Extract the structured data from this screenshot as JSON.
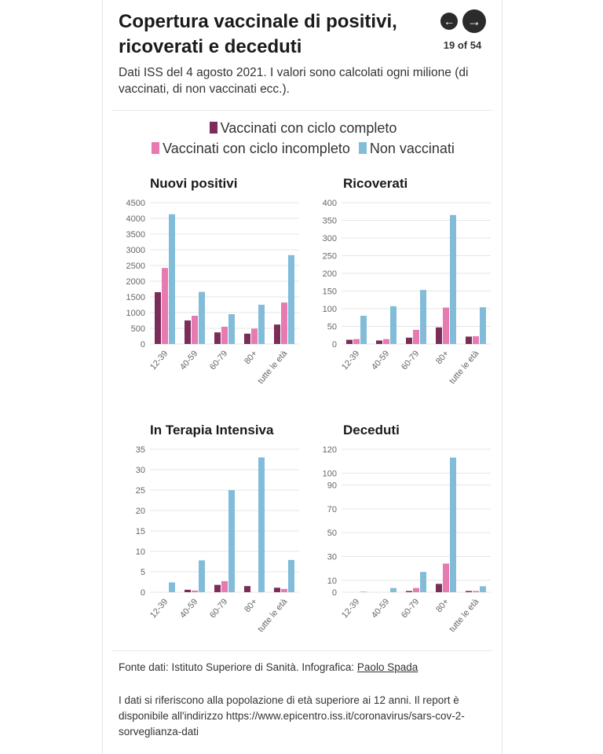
{
  "header": {
    "title": "Copertura vaccinale di positivi, ricoverati e deceduti",
    "nav_prev_icon": "arrow-left-icon",
    "nav_next_icon": "arrow-right-icon",
    "counter": "19 of 54"
  },
  "subtitle": "Dati ISS del 4 agosto 2021. I valori sono calcolati ogni milione (di vaccinati, di non vaccinati ecc.).",
  "colors": {
    "completo": "#7b2d5a",
    "incompleto": "#e67ab1",
    "non_vaccinati": "#82bcd8",
    "grid": "#e6e6e6",
    "axis_text": "#666666"
  },
  "legend": {
    "completo": "Vaccinati con ciclo completo",
    "incompleto": "Vaccinati con ciclo incompleto",
    "non_vaccinati": "Non vaccinati"
  },
  "chart_data": [
    {
      "type": "bar",
      "title": "Nuovi positivi",
      "categories": [
        "12-39",
        "40-59",
        "60-79",
        "80+",
        "tutte le età"
      ],
      "series": [
        {
          "name": "Vaccinati con ciclo completo",
          "values": [
            1650,
            750,
            370,
            330,
            620
          ]
        },
        {
          "name": "Vaccinati con ciclo incompleto",
          "values": [
            2420,
            900,
            550,
            490,
            1320
          ]
        },
        {
          "name": "Non vaccinati",
          "values": [
            4130,
            1660,
            950,
            1250,
            2830
          ]
        }
      ],
      "yticks": [
        0,
        500,
        1000,
        1500,
        2000,
        2500,
        3000,
        3500,
        4000,
        4500
      ],
      "ylim": [
        0,
        4500
      ]
    },
    {
      "type": "bar",
      "title": "Ricoverati",
      "categories": [
        "12-39",
        "40-59",
        "60-79",
        "80+",
        "tutte le età"
      ],
      "series": [
        {
          "name": "Vaccinati con ciclo completo",
          "values": [
            12,
            10,
            18,
            47,
            21
          ]
        },
        {
          "name": "Vaccinati con ciclo incompleto",
          "values": [
            14,
            14,
            40,
            103,
            22
          ]
        },
        {
          "name": "Non vaccinati",
          "values": [
            80,
            107,
            153,
            365,
            104
          ]
        }
      ],
      "yticks": [
        0,
        50,
        100,
        150,
        200,
        250,
        300,
        350,
        400
      ],
      "ylim": [
        0,
        400
      ]
    },
    {
      "type": "bar",
      "title": "In Terapia Intensiva",
      "categories": [
        "12-39",
        "40-59",
        "60-79",
        "80+",
        "tutte le età"
      ],
      "series": [
        {
          "name": "Vaccinati con ciclo completo",
          "values": [
            0,
            0.6,
            1.8,
            1.5,
            1.1
          ]
        },
        {
          "name": "Vaccinati con ciclo incompleto",
          "values": [
            0,
            0.4,
            2.7,
            0,
            0.8
          ]
        },
        {
          "name": "Non vaccinati",
          "values": [
            2.4,
            7.8,
            25,
            33,
            7.9
          ]
        }
      ],
      "yticks": [
        0,
        5,
        10,
        15,
        20,
        25,
        30,
        35
      ],
      "ylim": [
        0,
        35
      ]
    },
    {
      "type": "bar",
      "title": "Deceduti",
      "categories": [
        "12-39",
        "40-59",
        "60-79",
        "80+",
        "tutte le età"
      ],
      "series": [
        {
          "name": "Vaccinati con ciclo completo",
          "values": [
            0,
            0,
            1,
            7,
            1
          ]
        },
        {
          "name": "Vaccinati con ciclo incompleto",
          "values": [
            0,
            0,
            3.5,
            24,
            1
          ]
        },
        {
          "name": "Non vaccinati",
          "values": [
            0.5,
            3.5,
            17,
            113,
            5
          ]
        }
      ],
      "yticks": [
        0,
        10,
        30,
        50,
        70,
        90,
        100,
        120
      ],
      "ylim": [
        0,
        120
      ]
    }
  ],
  "footer": {
    "source_prefix": "Fonte dati: Istituto Superiore di Sanità. Infografica: ",
    "source_author": "Paolo Spada",
    "note": "I dati si riferiscono alla popolazione di età superiore ai 12 anni. Il report è disponibile all'indirizzo https://www.epicentro.iss.it/coronavirus/sars-cov-2-sorveglianza-dati"
  }
}
